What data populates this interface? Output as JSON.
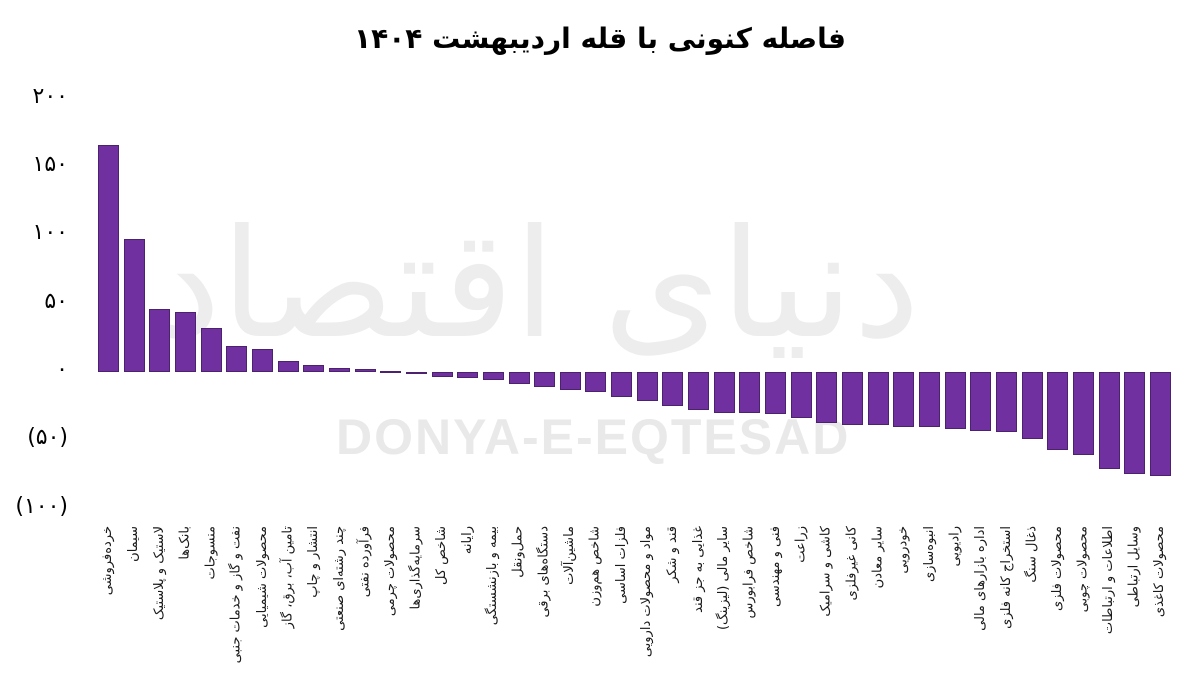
{
  "title": "فاصله کنونی با قله اردیبهشت ۱۴۰۴",
  "watermark": {
    "persian": "دنیای اقتصاد",
    "latin": "DONYA-E-EQTESAD"
  },
  "colors": {
    "bar_fill": "#7030A0",
    "bar_border": "#4C216E",
    "watermark": "#e9e9e9",
    "text": "#000000"
  },
  "chart_data": {
    "type": "bar",
    "title": "فاصله کنونی با قله اردیبهشت ۱۴۰۴",
    "xlabel": "",
    "ylabel": "",
    "ylim": [
      -100,
      200
    ],
    "grid": false,
    "legend": "none",
    "value_note": "percent distance from Ordibehesht 1404 peak; negatives shown in parentheses",
    "yticks": [
      {
        "value": 200,
        "label": "۲۰۰"
      },
      {
        "value": 150,
        "label": "۱۵۰"
      },
      {
        "value": 100,
        "label": "۱۰۰"
      },
      {
        "value": 50,
        "label": "۵۰"
      },
      {
        "value": 0,
        "label": "۰"
      },
      {
        "value": -50,
        "label": "(۵۰)"
      },
      {
        "value": -100,
        "label": "(۱۰۰)"
      }
    ],
    "categories": [
      "خرده‌فروشی",
      "سیمان",
      "لاستیک و پلاستیک",
      "بانک‌ها",
      "منسوجات",
      "نفت و گاز و خدمات جنبی",
      "محصولات شیمیایی",
      "تامین آب، برق، گاز",
      "انتشار و چاپ",
      "چند رشته‌ای صنعتی",
      "فرآورده نفتی",
      "محصولات چرمی",
      "سرمایه‌گذاری‌ها",
      "شاخص کل",
      "رایانه",
      "بیمه و بازنشستگی",
      "حمل‌ونقل",
      "دستگاه‌های برقی",
      "ماشین‌آلات",
      "شاخص هم‌وزن",
      "فلزات اساسی",
      "مواد و محصولات دارویی",
      "قند و شکر",
      "غذایی به جز قند",
      "سایر مالی (لیزینگ)",
      "شاخص فرابورس",
      "فنی و مهندسی",
      "زراعت",
      "کاشی و سرامیک",
      "کانی غیرفلزی",
      "سایر معادن",
      "خودرویی",
      "انبوه‌سازی",
      "رادیویی",
      "اداره بازارهای مالی",
      "استخراج کانه فلزی",
      "ذغال سنگ",
      "محصولات فلزی",
      "محصولات چوبی",
      "اطلاعات و ارتباطات",
      "وسایل ارتباطی",
      "محصولات کاغذی"
    ],
    "values": [
      166,
      97,
      46,
      44,
      32,
      19,
      17,
      8,
      5,
      3,
      2,
      0.5,
      -0.5,
      -4,
      -4.5,
      -5.5,
      -9,
      -11,
      -13,
      -15,
      -18,
      -21,
      -25,
      -28,
      -30,
      -30,
      -31,
      -34,
      -37,
      -39,
      -39,
      -40,
      -40,
      -42,
      -43,
      -44,
      -49,
      -57,
      -61,
      -71,
      -75,
      -76
    ]
  }
}
